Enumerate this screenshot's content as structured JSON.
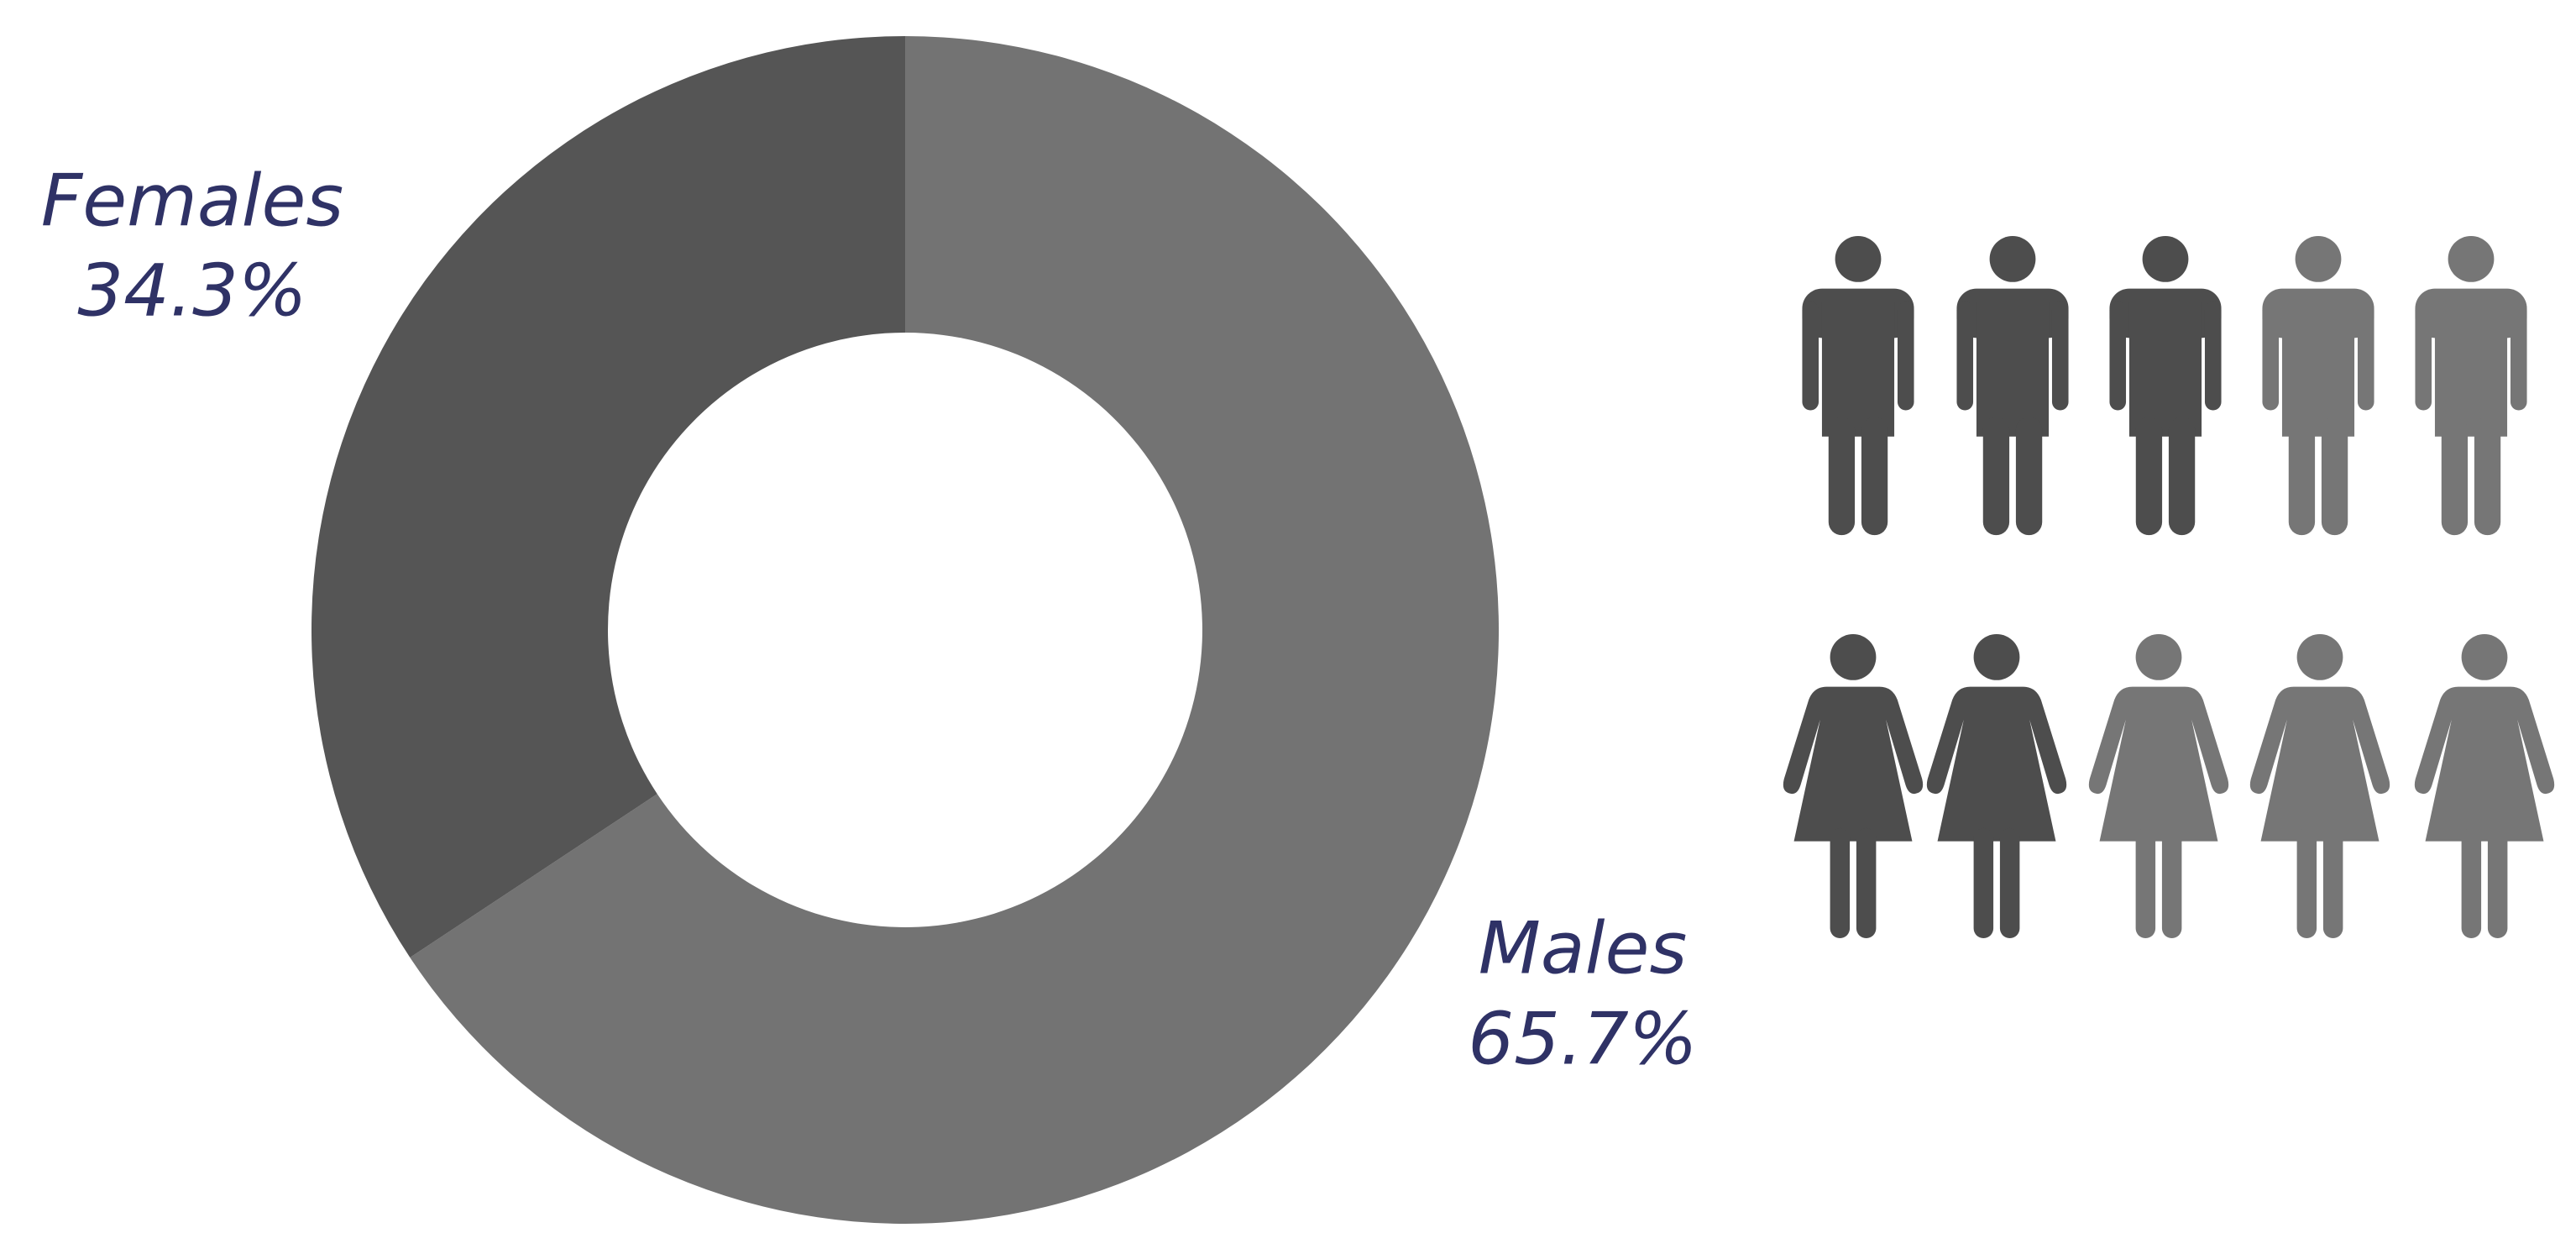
{
  "chart_data": {
    "type": "pie",
    "donut": true,
    "categories": [
      "Males",
      "Females"
    ],
    "values": [
      65.7,
      34.3
    ],
    "value_labels": [
      "65.7%",
      "34.3%"
    ],
    "colors": [
      "#737373",
      "#555555"
    ]
  }
}
